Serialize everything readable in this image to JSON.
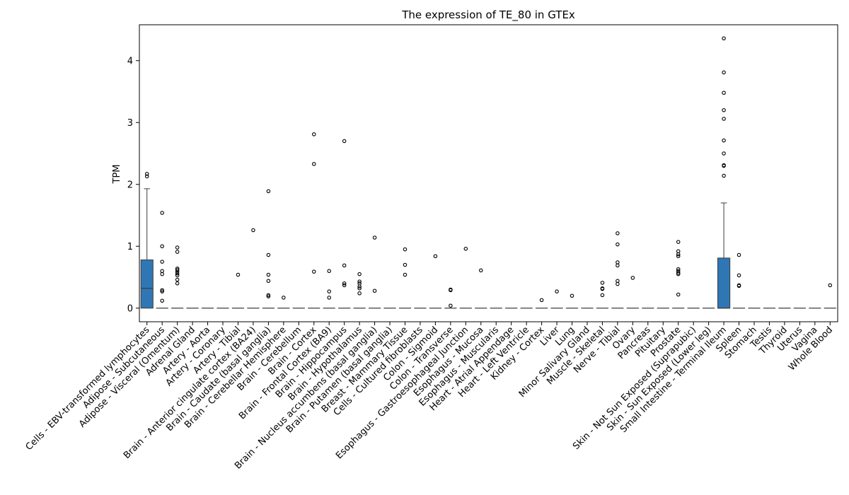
{
  "chart_data": {
    "type": "box",
    "title": "The expression of TE_80 in GTEx",
    "xlabel": "",
    "ylabel": "TPM",
    "ylim": [
      -0.22,
      4.58
    ],
    "yticks": [
      0,
      1,
      2,
      3,
      4
    ],
    "grid": false,
    "box_color": "#2f77b4",
    "categories": [
      "Cells - EBV-transformed lymphocytes",
      "Adipose - Subcutaneous",
      "Adipose - Visceral (Omentum)",
      "Adrenal Gland",
      "Artery - Aorta",
      "Artery - Coronary",
      "Artery - Tibial",
      "Brain - Anterior cingulate cortex (BA24)",
      "Brain - Caudate (basal ganglia)",
      "Brain - Cerebellar Hemisphere",
      "Brain - Cerebellum",
      "Brain - Cortex",
      "Brain - Frontal Cortex (BA9)",
      "Brain - Hippocampus",
      "Brain - Hypothalamus",
      "Brain - Nucleus accumbens (basal ganglia)",
      "Brain - Putamen (basal ganglia)",
      "Breast - Mammary Tissue",
      "Cells - Cultured fibroblasts",
      "Colon - Sigmoid",
      "Colon - Transverse",
      "Esophagus - Gastroesophageal Junction",
      "Esophagus - Mucosa",
      "Esophagus - Muscularis",
      "Heart - Atrial Appendage",
      "Heart - Left Ventricle",
      "Kidney - Cortex",
      "Liver",
      "Lung",
      "Minor Salivary Gland",
      "Muscle - Skeletal",
      "Nerve - Tibial",
      "Ovary",
      "Pancreas",
      "Pituitary",
      "Prostate",
      "Skin - Not Sun Exposed (Suprapubic)",
      "Skin - Sun Exposed (Lower leg)",
      "Small Intestine - Terminal Ileum",
      "Spleen",
      "Stomach",
      "Testis",
      "Thyroid",
      "Uterus",
      "Vagina",
      "Whole Blood"
    ],
    "boxes": [
      {
        "q1": 0,
        "median": 0.32,
        "q3": 0.78,
        "whislo": 0,
        "whishi": 1.93,
        "fliers": [
          2.13,
          2.17
        ]
      },
      {
        "q1": 0,
        "median": 0,
        "q3": 0,
        "whislo": 0,
        "whishi": 0,
        "fliers": [
          0.12,
          0.27,
          0.29,
          0.55,
          0.6,
          0.75,
          1.0,
          1.54
        ]
      },
      {
        "q1": 0,
        "median": 0,
        "q3": 0,
        "whislo": 0,
        "whishi": 0,
        "fliers": [
          0.4,
          0.46,
          0.53,
          0.56,
          0.59,
          0.62,
          0.64,
          0.91,
          0.98
        ]
      },
      {
        "q1": 0,
        "median": 0,
        "q3": 0,
        "whislo": 0,
        "whishi": 0,
        "fliers": []
      },
      {
        "q1": 0,
        "median": 0,
        "q3": 0,
        "whislo": 0,
        "whishi": 0,
        "fliers": []
      },
      {
        "q1": 0,
        "median": 0,
        "q3": 0,
        "whislo": 0,
        "whishi": 0,
        "fliers": []
      },
      {
        "q1": 0,
        "median": 0,
        "q3": 0,
        "whislo": 0,
        "whishi": 0,
        "fliers": [
          0.54
        ]
      },
      {
        "q1": 0,
        "median": 0,
        "q3": 0,
        "whislo": 0,
        "whishi": 0,
        "fliers": [
          1.26
        ]
      },
      {
        "q1": 0,
        "median": 0,
        "q3": 0,
        "whislo": 0,
        "whishi": 0,
        "fliers": [
          0.19,
          0.21,
          0.44,
          0.54,
          0.86,
          1.89
        ]
      },
      {
        "q1": 0,
        "median": 0,
        "q3": 0,
        "whislo": 0,
        "whishi": 0,
        "fliers": [
          0.17
        ]
      },
      {
        "q1": 0,
        "median": 0,
        "q3": 0,
        "whislo": 0,
        "whishi": 0,
        "fliers": []
      },
      {
        "q1": 0,
        "median": 0,
        "q3": 0,
        "whislo": 0,
        "whishi": 0,
        "fliers": [
          0.59,
          2.33,
          2.81
        ]
      },
      {
        "q1": 0,
        "median": 0,
        "q3": 0,
        "whislo": 0,
        "whishi": 0,
        "fliers": [
          0.17,
          0.27,
          0.6
        ]
      },
      {
        "q1": 0,
        "median": 0,
        "q3": 0,
        "whislo": 0,
        "whishi": 0,
        "fliers": [
          0.37,
          0.4,
          0.69,
          2.7
        ]
      },
      {
        "q1": 0,
        "median": 0,
        "q3": 0,
        "whislo": 0,
        "whishi": 0,
        "fliers": [
          0.24,
          0.32,
          0.35,
          0.4,
          0.43,
          0.55
        ]
      },
      {
        "q1": 0,
        "median": 0,
        "q3": 0,
        "whislo": 0,
        "whishi": 0,
        "fliers": [
          0.28,
          1.14
        ]
      },
      {
        "q1": 0,
        "median": 0,
        "q3": 0,
        "whislo": 0,
        "whishi": 0,
        "fliers": []
      },
      {
        "q1": 0,
        "median": 0,
        "q3": 0,
        "whislo": 0,
        "whishi": 0,
        "fliers": [
          0.54,
          0.7,
          0.95
        ]
      },
      {
        "q1": 0,
        "median": 0,
        "q3": 0,
        "whislo": 0,
        "whishi": 0,
        "fliers": []
      },
      {
        "q1": 0,
        "median": 0,
        "q3": 0,
        "whislo": 0,
        "whishi": 0,
        "fliers": [
          0.84
        ]
      },
      {
        "q1": 0,
        "median": 0,
        "q3": 0,
        "whislo": 0,
        "whishi": 0,
        "fliers": [
          0.04,
          0.29,
          0.3
        ]
      },
      {
        "q1": 0,
        "median": 0,
        "q3": 0,
        "whislo": 0,
        "whishi": 0,
        "fliers": [
          0.96
        ]
      },
      {
        "q1": 0,
        "median": 0,
        "q3": 0,
        "whislo": 0,
        "whishi": 0,
        "fliers": [
          0.61
        ]
      },
      {
        "q1": 0,
        "median": 0,
        "q3": 0,
        "whislo": 0,
        "whishi": 0,
        "fliers": []
      },
      {
        "q1": 0,
        "median": 0,
        "q3": 0,
        "whislo": 0,
        "whishi": 0,
        "fliers": []
      },
      {
        "q1": 0,
        "median": 0,
        "q3": 0,
        "whislo": 0,
        "whishi": 0,
        "fliers": []
      },
      {
        "q1": 0,
        "median": 0,
        "q3": 0,
        "whislo": 0,
        "whishi": 0,
        "fliers": [
          0.13
        ]
      },
      {
        "q1": 0,
        "median": 0,
        "q3": 0,
        "whislo": 0,
        "whishi": 0,
        "fliers": [
          0.27
        ]
      },
      {
        "q1": 0,
        "median": 0,
        "q3": 0,
        "whislo": 0,
        "whishi": 0,
        "fliers": [
          0.2
        ]
      },
      {
        "q1": 0,
        "median": 0,
        "q3": 0,
        "whislo": 0,
        "whishi": 0,
        "fliers": []
      },
      {
        "q1": 0,
        "median": 0,
        "q3": 0,
        "whislo": 0,
        "whishi": 0,
        "fliers": [
          0.21,
          0.31,
          0.32,
          0.41
        ]
      },
      {
        "q1": 0,
        "median": 0,
        "q3": 0,
        "whislo": 0,
        "whishi": 0,
        "fliers": [
          0.39,
          0.44,
          0.69,
          0.74,
          1.03,
          1.21
        ]
      },
      {
        "q1": 0,
        "median": 0,
        "q3": 0,
        "whislo": 0,
        "whishi": 0,
        "fliers": [
          0.49
        ]
      },
      {
        "q1": 0,
        "median": 0,
        "q3": 0,
        "whislo": 0,
        "whishi": 0,
        "fliers": []
      },
      {
        "q1": 0,
        "median": 0,
        "q3": 0,
        "whislo": 0,
        "whishi": 0,
        "fliers": []
      },
      {
        "q1": 0,
        "median": 0,
        "q3": 0,
        "whislo": 0,
        "whishi": 0,
        "fliers": [
          0.22,
          0.55,
          0.57,
          0.6,
          0.63,
          0.84,
          0.87,
          0.92,
          1.07
        ]
      },
      {
        "q1": 0,
        "median": 0,
        "q3": 0,
        "whislo": 0,
        "whishi": 0,
        "fliers": []
      },
      {
        "q1": 0,
        "median": 0,
        "q3": 0,
        "whislo": 0,
        "whishi": 0,
        "fliers": []
      },
      {
        "q1": 0,
        "median": 0,
        "q3": 0.81,
        "whislo": 0,
        "whishi": 1.7,
        "fliers": [
          2.14,
          2.3,
          2.31,
          2.5,
          2.71,
          3.06,
          3.2,
          3.48,
          3.81,
          4.36
        ]
      },
      {
        "q1": 0,
        "median": 0,
        "q3": 0,
        "whislo": 0,
        "whishi": 0,
        "fliers": [
          0.36,
          0.37,
          0.53,
          0.86
        ]
      },
      {
        "q1": 0,
        "median": 0,
        "q3": 0,
        "whislo": 0,
        "whishi": 0,
        "fliers": []
      },
      {
        "q1": 0,
        "median": 0,
        "q3": 0,
        "whislo": 0,
        "whishi": 0,
        "fliers": []
      },
      {
        "q1": 0,
        "median": 0,
        "q3": 0,
        "whislo": 0,
        "whishi": 0,
        "fliers": []
      },
      {
        "q1": 0,
        "median": 0,
        "q3": 0,
        "whislo": 0,
        "whishi": 0,
        "fliers": []
      },
      {
        "q1": 0,
        "median": 0,
        "q3": 0,
        "whislo": 0,
        "whishi": 0,
        "fliers": []
      },
      {
        "q1": 0,
        "median": 0,
        "q3": 0,
        "whislo": 0,
        "whishi": 0,
        "fliers": [
          0.37
        ]
      }
    ]
  }
}
